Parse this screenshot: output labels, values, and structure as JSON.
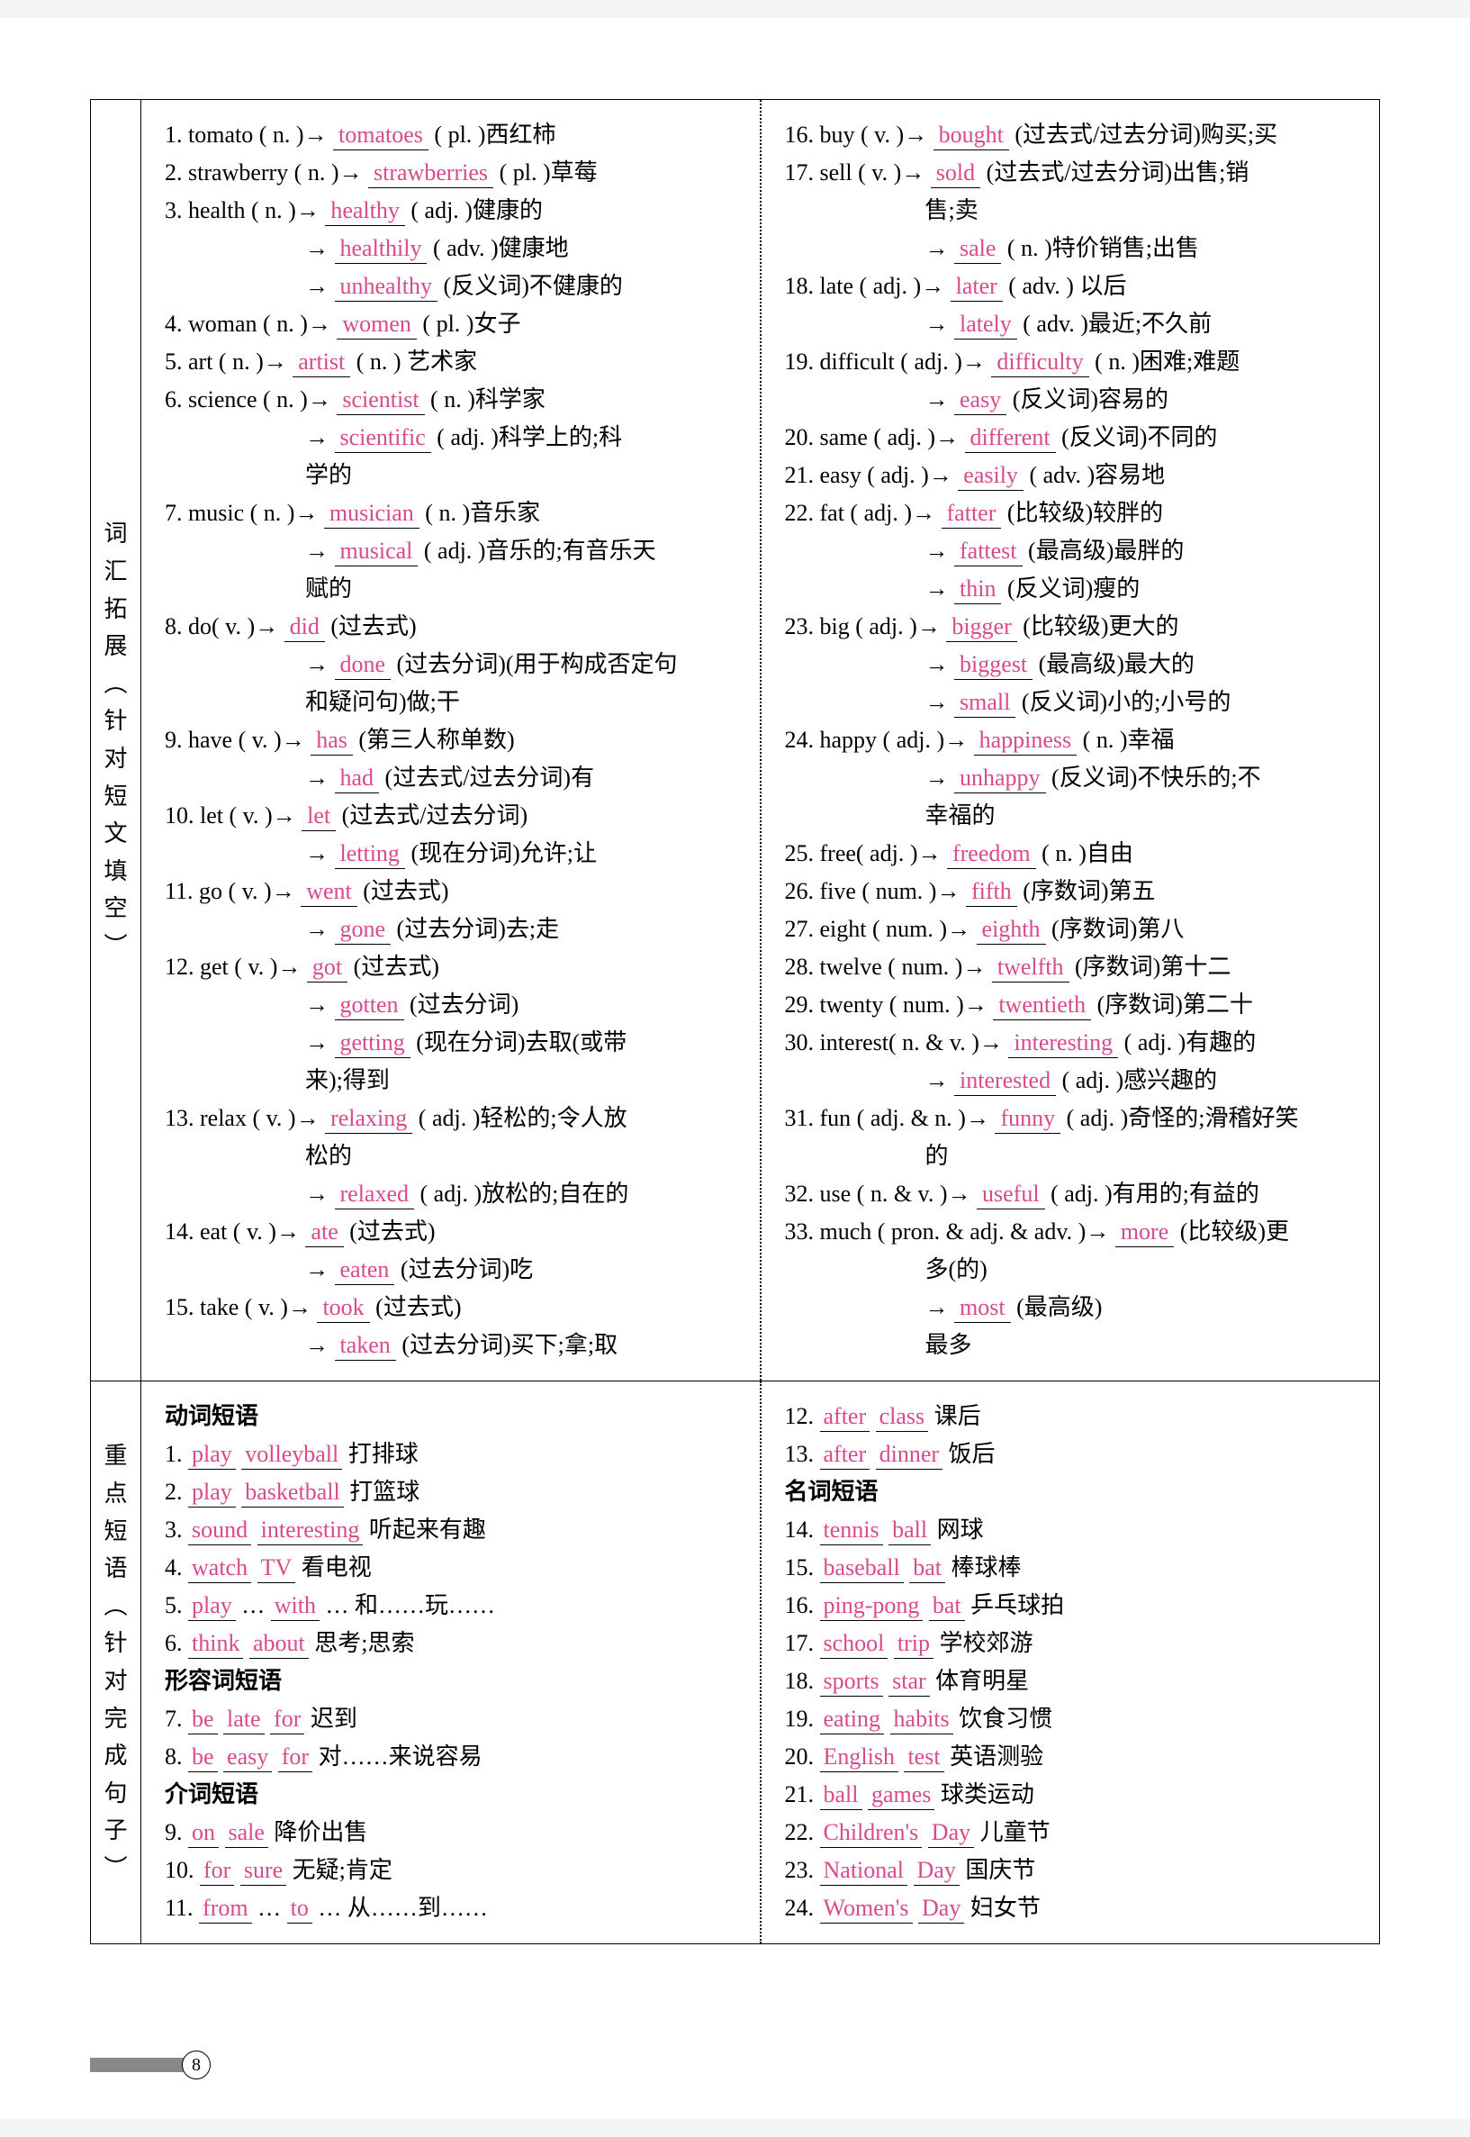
{
  "page_number": "8",
  "section1": {
    "side_label": [
      "词",
      "汇",
      "拓",
      "展",
      "︵",
      "针",
      "对",
      "短",
      "文",
      "填",
      "空",
      "︶"
    ],
    "left": [
      {
        "n": "1.",
        "pre": "tomato ( n. )",
        "arr": "→",
        "ans": "tomatoes",
        "post": "( pl. )西红柿"
      },
      {
        "n": "2.",
        "pre": "strawberry ( n. )",
        "arr": "→",
        "ans": "strawberries",
        "post": "( pl. )草莓"
      },
      {
        "n": "3.",
        "pre": "health ( n. )",
        "arr": "→",
        "ans": "healthy",
        "post": "( adj. )健康的"
      },
      {
        "cont": true,
        "arr": "→",
        "ans": "healthily",
        "post": "( adv. )健康地"
      },
      {
        "cont": true,
        "arr": "→",
        "ans": "unhealthy",
        "post": "(反义词)不健康的"
      },
      {
        "n": "4.",
        "pre": "woman ( n. )",
        "arr": "→",
        "ans": "women",
        "post": "( pl. )女子"
      },
      {
        "n": "5.",
        "pre": "art ( n. )",
        "arr": "→",
        "ans": "artist",
        "post": "( n. ) 艺术家"
      },
      {
        "n": "6.",
        "pre": "science ( n. )",
        "arr": "→",
        "ans": "scientist",
        "post": "( n. )科学家"
      },
      {
        "cont": true,
        "arr": "→",
        "ans": "scientific",
        "post": "( adj. )科学上的;科"
      },
      {
        "cont": true,
        "plain": "学的"
      },
      {
        "n": "7.",
        "pre": "music ( n. )",
        "arr": "→",
        "ans": "musician",
        "post": "( n. )音乐家"
      },
      {
        "cont": true,
        "arr": "→",
        "ans": "musical",
        "post": "( adj. )音乐的;有音乐天"
      },
      {
        "cont": true,
        "plain": "赋的"
      },
      {
        "n": "8.",
        "pre": "do( v. )",
        "arr": "→",
        "ans": "did",
        "post": "(过去式)"
      },
      {
        "cont": true,
        "arr": "→",
        "ans": "done",
        "post": "(过去分词)(用于构成否定句"
      },
      {
        "cont": true,
        "plain": "和疑问句)做;干"
      },
      {
        "n": "9.",
        "pre": "have ( v. )",
        "arr": "→",
        "ans": "has",
        "post": "(第三人称单数)"
      },
      {
        "cont": true,
        "arr": "→",
        "ans": "had",
        "post": "(过去式/过去分词)有"
      },
      {
        "n": "10.",
        "pre": "let ( v. )",
        "arr": "→",
        "ans": "let",
        "post": "(过去式/过去分词)"
      },
      {
        "cont": true,
        "arr": "→",
        "ans": "letting",
        "post": "(现在分词)允许;让"
      },
      {
        "n": "11.",
        "pre": "go ( v. )",
        "arr": "→",
        "ans": "went",
        "post": "(过去式)"
      },
      {
        "cont": true,
        "arr": "→",
        "ans": "gone",
        "post": "(过去分词)去;走"
      },
      {
        "n": "12.",
        "pre": "get ( v. )",
        "arr": "→",
        "ans": "got",
        "post": "(过去式)"
      },
      {
        "cont": true,
        "arr": "→",
        "ans": "gotten",
        "post": "(过去分词)"
      },
      {
        "cont": true,
        "arr": "→",
        "ans": "getting",
        "post": "(现在分词)去取(或带"
      },
      {
        "cont": true,
        "plain": "来);得到"
      },
      {
        "n": "13.",
        "pre": "relax ( v. )",
        "arr": "→",
        "ans": "relaxing",
        "post": "( adj. )轻松的;令人放"
      },
      {
        "cont": true,
        "plain": "松的"
      },
      {
        "cont": true,
        "arr": "→",
        "ans": "relaxed",
        "post": "( adj. )放松的;自在的"
      },
      {
        "n": "14.",
        "pre": "eat ( v. )",
        "arr": "→",
        "ans": "ate",
        "post": "(过去式)"
      },
      {
        "cont": true,
        "arr": "→",
        "ans": "eaten",
        "post": "(过去分词)吃"
      },
      {
        "n": "15.",
        "pre": "take ( v. )",
        "arr": "→",
        "ans": "took",
        "post": "(过去式)"
      },
      {
        "cont": true,
        "arr": "→",
        "ans": "taken",
        "post": "(过去分词)买下;拿;取"
      }
    ],
    "right": [
      {
        "n": "16.",
        "pre": "buy ( v. )",
        "arr": "→",
        "ans": "bought",
        "post": "(过去式/过去分词)购买;买"
      },
      {
        "n": "17.",
        "pre": "sell ( v. )",
        "arr": "→",
        "ans": "sold",
        "post": "(过去式/过去分词)出售;销"
      },
      {
        "cont": true,
        "plain": "售;卖"
      },
      {
        "cont": true,
        "arr": "→",
        "ans": "sale",
        "post": "( n. )特价销售;出售"
      },
      {
        "n": "18.",
        "pre": "late ( adj. )",
        "arr": "→",
        "ans": "later",
        "post": "( adv. ) 以后"
      },
      {
        "cont": true,
        "arr": "→",
        "ans": "lately",
        "post": "( adv. )最近;不久前"
      },
      {
        "n": "19.",
        "pre": "difficult ( adj. )",
        "arr": "→",
        "ans": "difficulty",
        "post": "( n. )困难;难题"
      },
      {
        "cont": true,
        "arr": "→",
        "ans": "easy",
        "post": "(反义词)容易的"
      },
      {
        "n": "20.",
        "pre": "same ( adj. )",
        "arr": "→",
        "ans": "different",
        "post": "(反义词)不同的"
      },
      {
        "n": "21.",
        "pre": "easy ( adj. )",
        "arr": "→",
        "ans": "easily",
        "post": "( adv. )容易地"
      },
      {
        "n": "22.",
        "pre": "fat ( adj. )",
        "arr": "→",
        "ans": "fatter",
        "post": "(比较级)较胖的"
      },
      {
        "cont": true,
        "arr": "→",
        "ans": "fattest",
        "post": "(最高级)最胖的"
      },
      {
        "cont": true,
        "arr": "→",
        "ans": "thin",
        "post": "(反义词)瘦的"
      },
      {
        "n": "23.",
        "pre": "big ( adj. )",
        "arr": "→",
        "ans": "bigger",
        "post": "(比较级)更大的"
      },
      {
        "cont": true,
        "arr": "→",
        "ans": "biggest",
        "post": "(最高级)最大的"
      },
      {
        "cont": true,
        "arr": "→",
        "ans": "small",
        "post": "(反义词)小的;小号的"
      },
      {
        "n": "24.",
        "pre": "happy ( adj. )",
        "arr": "→",
        "ans": "happiness",
        "post": "( n. )幸福"
      },
      {
        "cont": true,
        "arr": "→",
        "ans": "unhappy",
        "post": "(反义词)不快乐的;不"
      },
      {
        "cont": true,
        "plain": "幸福的"
      },
      {
        "n": "25.",
        "pre": "free( adj. )",
        "arr": "→",
        "ans": "freedom",
        "post": "( n. )自由"
      },
      {
        "n": "26.",
        "pre": "five ( num. )",
        "arr": "→",
        "ans": "fifth",
        "post": "(序数词)第五"
      },
      {
        "n": "27.",
        "pre": "eight ( num. )",
        "arr": "→",
        "ans": "eighth",
        "post": "(序数词)第八"
      },
      {
        "n": "28.",
        "pre": "twelve ( num. )",
        "arr": "→",
        "ans": "twelfth",
        "post": "(序数词)第十二"
      },
      {
        "n": "29.",
        "pre": "twenty ( num. )",
        "arr": "→",
        "ans": "twentieth",
        "post": "(序数词)第二十"
      },
      {
        "n": "30.",
        "pre": "interest( n. & v. )",
        "arr": "→",
        "ans": "interesting",
        "post": "( adj. )有趣的"
      },
      {
        "cont": true,
        "arr": "→",
        "ans": "interested",
        "post": "( adj. )感兴趣的"
      },
      {
        "n": "31.",
        "pre": "fun ( adj. & n. )",
        "arr": "→",
        "ans": "funny",
        "post": "( adj. )奇怪的;滑稽好笑"
      },
      {
        "cont": true,
        "plain": "的"
      },
      {
        "n": "32.",
        "pre": "use ( n. & v. )",
        "arr": "→",
        "ans": "useful",
        "post": "( adj. )有用的;有益的"
      },
      {
        "n": "33.",
        "pre": "much ( pron. & adj. & adv. )",
        "arr": "→",
        "ans": "more",
        "post": "(比较级)更"
      },
      {
        "cont": true,
        "plain": "多(的)"
      },
      {
        "cont": true,
        "arr": "→",
        "ans": "most",
        "post": "(最高级)"
      },
      {
        "cont": true,
        "plain": "最多"
      }
    ]
  },
  "section2": {
    "side_label": [
      "重",
      "点",
      "短",
      "语",
      "︵",
      "针",
      "对",
      "完",
      "成",
      "句",
      "子",
      "︶"
    ],
    "left": [
      {
        "subhead": "动词短语"
      },
      {
        "n": "1.",
        "blanks": [
          "play",
          "volleyball"
        ],
        "post": "打排球"
      },
      {
        "n": "2.",
        "blanks": [
          "play",
          "basketball"
        ],
        "post": "打篮球"
      },
      {
        "n": "3.",
        "blanks": [
          "sound",
          "interesting"
        ],
        "post": "听起来有趣"
      },
      {
        "n": "4.",
        "blanks": [
          "watch",
          "TV"
        ],
        "post": "看电视"
      },
      {
        "n": "5.",
        "blanks": [
          "play"
        ],
        "mid": "…",
        "blanks2": [
          "with"
        ],
        "mid2": "…",
        "post": "和……玩……"
      },
      {
        "n": "6.",
        "blanks": [
          "think",
          "about"
        ],
        "post": "思考;思索"
      },
      {
        "subhead": "形容词短语"
      },
      {
        "n": "7.",
        "blanks": [
          "be",
          "late",
          "for"
        ],
        "post": "迟到"
      },
      {
        "n": "8.",
        "blanks": [
          "be",
          "easy",
          "for"
        ],
        "post": "对……来说容易"
      },
      {
        "subhead": "介词短语"
      },
      {
        "n": "9.",
        "blanks": [
          "on",
          "sale"
        ],
        "post": "降价出售"
      },
      {
        "n": "10.",
        "blanks": [
          "for",
          "sure"
        ],
        "post": "无疑;肯定"
      },
      {
        "n": "11.",
        "blanks": [
          "from"
        ],
        "mid": "…",
        "blanks2": [
          "to"
        ],
        "mid2": "…",
        "post": "从……到……"
      }
    ],
    "right": [
      {
        "n": "12.",
        "blanks": [
          "after",
          "class"
        ],
        "post": "课后"
      },
      {
        "n": "13.",
        "blanks": [
          "after",
          "dinner"
        ],
        "post": "饭后"
      },
      {
        "subhead": "名词短语"
      },
      {
        "n": "14.",
        "blanks": [
          "tennis",
          "ball"
        ],
        "post": "网球"
      },
      {
        "n": "15.",
        "blanks": [
          "baseball",
          "bat"
        ],
        "post": "棒球棒"
      },
      {
        "n": "16.",
        "blanks": [
          "ping-pong",
          "bat"
        ],
        "post": "乒乓球拍"
      },
      {
        "n": "17.",
        "blanks": [
          "school",
          "trip"
        ],
        "post": "学校郊游"
      },
      {
        "n": "18.",
        "blanks": [
          "sports",
          "star"
        ],
        "post": "体育明星"
      },
      {
        "n": "19.",
        "blanks": [
          "eating",
          "habits"
        ],
        "post": "饮食习惯"
      },
      {
        "n": "20.",
        "blanks": [
          "English",
          "test"
        ],
        "post": "英语测验"
      },
      {
        "n": "21.",
        "blanks": [
          "ball",
          "games"
        ],
        "post": "球类运动"
      },
      {
        "n": "22.",
        "blanks": [
          "Children's",
          "Day"
        ],
        "post": "儿童节"
      },
      {
        "n": "23.",
        "blanks": [
          "National",
          "Day"
        ],
        "post": "国庆节"
      },
      {
        "n": "24.",
        "blanks": [
          "Women's",
          "Day"
        ],
        "post": "妇女节"
      }
    ]
  }
}
